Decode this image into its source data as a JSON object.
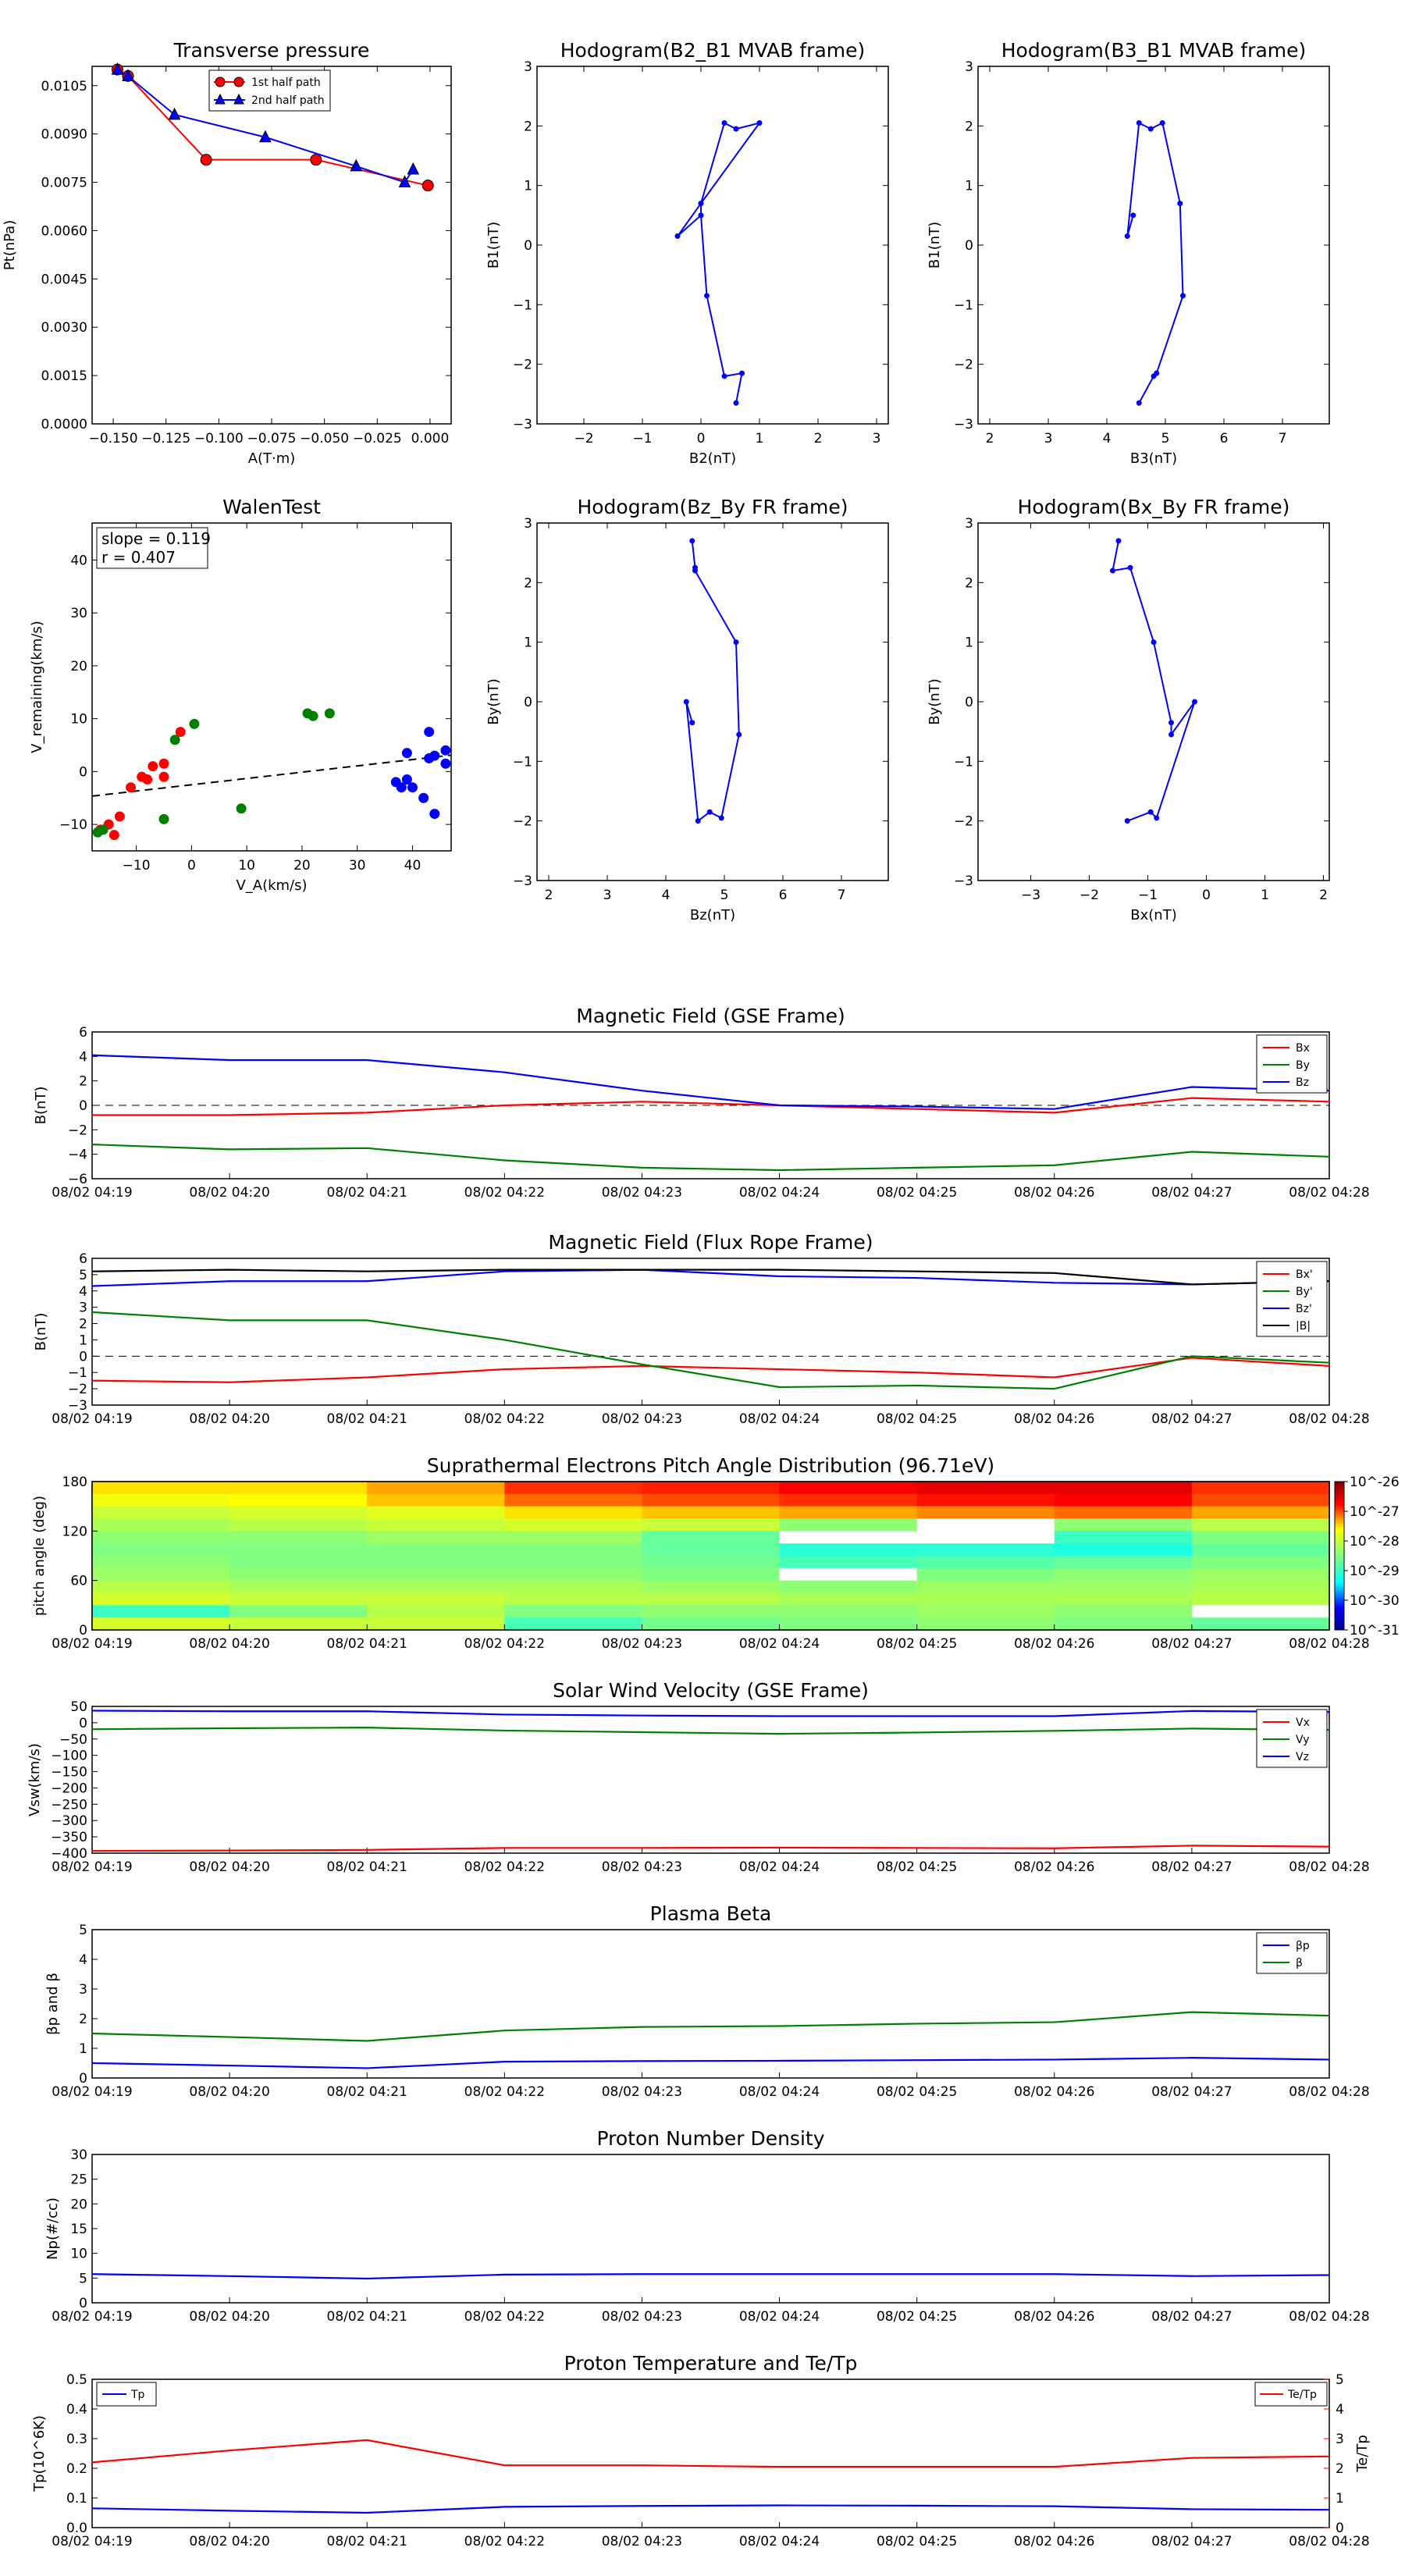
{
  "times": [
    "08/02 04:19",
    "08/02 04:20",
    "08/02 04:21",
    "08/02 04:22",
    "08/02 04:23",
    "08/02 04:24",
    "08/02 04:25",
    "08/02 04:26",
    "08/02 04:27",
    "08/02 04:28"
  ],
  "colors": {
    "red": "#ff0000",
    "green": "#008000",
    "blue": "#0000ff",
    "black": "#000000"
  },
  "chart_data": [
    {
      "id": "tp",
      "type": "line",
      "title": "Transverse pressure",
      "xlabel": "A(T·m)",
      "ylabel": "Pt(nPa)",
      "xlim": [
        -0.16,
        0.01
      ],
      "ylim": [
        0,
        0.0111
      ],
      "xticks": [
        -0.15,
        -0.125,
        -0.1,
        -0.075,
        -0.05,
        -0.025,
        0.0
      ],
      "xtick_labels": [
        "−0.150",
        "−0.125",
        "−0.100",
        "−0.075",
        "−0.050",
        "−0.025",
        "0.000"
      ],
      "yticks": [
        0.0,
        0.0015,
        0.003,
        0.0045,
        0.006,
        0.0075,
        0.009,
        0.0105
      ],
      "ytick_labels": [
        "0.0000",
        "0.0015",
        "0.0030",
        "0.0045",
        "0.0060",
        "0.0075",
        "0.0090",
        "0.0105"
      ],
      "legend": "top-center",
      "series": [
        {
          "name": "1st half path",
          "color": "#ff0000",
          "marker": "circle",
          "x": [
            -0.148,
            -0.143,
            -0.106,
            -0.054,
            -0.001
          ],
          "y": [
            0.011,
            0.0108,
            0.0082,
            0.0082,
            0.0074
          ]
        },
        {
          "name": "2nd half path",
          "color": "#0000ff",
          "marker": "triangle",
          "x": [
            -0.148,
            -0.143,
            -0.121,
            -0.078,
            -0.035,
            -0.012,
            -0.008
          ],
          "y": [
            0.011,
            0.0108,
            0.0096,
            0.0089,
            0.008,
            0.0075,
            0.0079
          ]
        }
      ]
    },
    {
      "id": "h1",
      "type": "line",
      "title": "Hodogram(B2_B1 MVAB frame)",
      "xlabel": "B2(nT)",
      "ylabel": "B1(nT)",
      "xlim": [
        -2.8,
        3.2
      ],
      "ylim": [
        -3,
        3
      ],
      "xticks": [
        -2,
        -1,
        0,
        1,
        2,
        3
      ],
      "yticks": [
        -3,
        -2,
        -1,
        0,
        1,
        2,
        3
      ],
      "xtick_labels": [
        "−2",
        "−1",
        "0",
        "1",
        "2",
        "3"
      ],
      "ytick_labels": [
        "−3",
        "−2",
        "−1",
        "0",
        "1",
        "2",
        "3"
      ],
      "series": [
        {
          "color": "#0000ff",
          "marker": "dot",
          "x": [
            0.6,
            0.7,
            0.4,
            0.1,
            0.0,
            -0.4,
            0.0,
            0.4,
            0.6,
            1.0,
            0.0,
            0.0
          ],
          "y": [
            -2.65,
            -2.15,
            -2.2,
            -0.85,
            0.5,
            0.15,
            0.7,
            2.05,
            1.95,
            2.05,
            0.7,
            0.5
          ]
        }
      ]
    },
    {
      "id": "h2",
      "type": "line",
      "title": "Hodogram(B3_B1 MVAB frame)",
      "xlabel": "B3(nT)",
      "ylabel": "B1(nT)",
      "xlim": [
        1.8,
        7.8
      ],
      "ylim": [
        -3,
        3
      ],
      "xticks": [
        2,
        3,
        4,
        5,
        6,
        7
      ],
      "yticks": [
        -3,
        -2,
        -1,
        0,
        1,
        2,
        3
      ],
      "xtick_labels": [
        "2",
        "3",
        "4",
        "5",
        "6",
        "7"
      ],
      "ytick_labels": [
        "−3",
        "−2",
        "−1",
        "0",
        "1",
        "2",
        "3"
      ],
      "series": [
        {
          "color": "#0000ff",
          "marker": "dot",
          "x": [
            4.55,
            4.8,
            4.85,
            5.3,
            5.25,
            4.95,
            4.75,
            4.55,
            4.35,
            4.45
          ],
          "y": [
            -2.65,
            -2.2,
            -2.15,
            -0.85,
            0.7,
            2.05,
            1.95,
            2.05,
            0.15,
            0.5
          ]
        }
      ]
    },
    {
      "id": "walen",
      "type": "scatter",
      "title": "WalenTest",
      "xlabel": "V_A(km/s)",
      "ylabel": "V_remaining(km/s)",
      "xlim": [
        -18,
        47
      ],
      "ylim": [
        -15,
        47
      ],
      "xticks": [
        -10,
        0,
        10,
        20,
        30,
        40
      ],
      "yticks": [
        -10,
        0,
        10,
        20,
        30,
        40
      ],
      "xtick_labels": [
        "−10",
        "0",
        "10",
        "20",
        "30",
        "40"
      ],
      "ytick_labels": [
        "−10",
        "0",
        "10",
        "20",
        "30",
        "40"
      ],
      "annotation": [
        "slope = 0.119",
        "r = 0.407"
      ],
      "fit": {
        "slope": 0.119,
        "intercept": -2.5,
        "color": "#000000",
        "style": "dashed"
      },
      "series": [
        {
          "color": "#ff0000",
          "x": [
            -16.5,
            -15,
            -14,
            -13,
            -11,
            -9,
            -8,
            -7,
            -5,
            -5,
            -2
          ],
          "y": [
            -11,
            -10,
            -12,
            -8.5,
            -3,
            -1,
            -1.5,
            1,
            1.5,
            -1,
            7.5
          ]
        },
        {
          "color": "#008000",
          "x": [
            -17,
            -16,
            -5,
            -3,
            0.5,
            9,
            21,
            22,
            25
          ],
          "y": [
            -11.5,
            -11,
            -9,
            6,
            9,
            -7,
            11,
            10.5,
            11
          ]
        },
        {
          "color": "#0000ff",
          "x": [
            37,
            38,
            39,
            39,
            40,
            42,
            43,
            43,
            44,
            44,
            46,
            46
          ],
          "y": [
            -2,
            -3,
            -1.5,
            3.5,
            -3,
            -5,
            2.5,
            7.5,
            -8,
            3,
            1.5,
            4
          ]
        }
      ]
    },
    {
      "id": "h3",
      "type": "line",
      "title": "Hodogram(Bz_By FR frame)",
      "xlabel": "Bz(nT)",
      "ylabel": "By(nT)",
      "xlim": [
        1.8,
        7.8
      ],
      "ylim": [
        -3,
        3
      ],
      "xticks": [
        2,
        3,
        4,
        5,
        6,
        7
      ],
      "yticks": [
        -3,
        -2,
        -1,
        0,
        1,
        2,
        3
      ],
      "xtick_labels": [
        "2",
        "3",
        "4",
        "5",
        "6",
        "7"
      ],
      "ytick_labels": [
        "−3",
        "−2",
        "−1",
        "0",
        "1",
        "2",
        "3"
      ],
      "series": [
        {
          "color": "#0000ff",
          "marker": "dot",
          "x": [
            4.45,
            4.5,
            4.5,
            5.2,
            5.25,
            4.95,
            4.75,
            4.55,
            4.35,
            4.45
          ],
          "y": [
            2.7,
            2.25,
            2.2,
            1.0,
            -0.55,
            -1.95,
            -1.85,
            -2.0,
            0.0,
            -0.35
          ]
        }
      ]
    },
    {
      "id": "h4",
      "type": "line",
      "title": "Hodogram(Bx_By FR frame)",
      "xlabel": "Bx(nT)",
      "ylabel": "By(nT)",
      "xlim": [
        -3.9,
        2.1
      ],
      "ylim": [
        -3,
        3
      ],
      "xticks": [
        -3,
        -2,
        -1,
        0,
        1,
        2
      ],
      "yticks": [
        -3,
        -2,
        -1,
        0,
        1,
        2,
        3
      ],
      "xtick_labels": [
        "−3",
        "−2",
        "−1",
        "0",
        "1",
        "2"
      ],
      "ytick_labels": [
        "−3",
        "−2",
        "−1",
        "0",
        "1",
        "2",
        "3"
      ],
      "series": [
        {
          "color": "#0000ff",
          "marker": "dot",
          "x": [
            -1.5,
            -1.6,
            -1.3,
            -0.9,
            -0.6,
            -0.6,
            -0.2,
            -0.85,
            -0.95,
            -1.35
          ],
          "y": [
            2.7,
            2.2,
            2.25,
            1.0,
            -0.35,
            -0.55,
            0.0,
            -1.95,
            -1.85,
            -2.0
          ]
        }
      ]
    },
    {
      "id": "mag",
      "type": "line",
      "title": "Magnetic Field (GSE Frame)",
      "ylabel": "B(nT)",
      "ylim": [
        -6,
        6
      ],
      "yticks": [
        -6,
        -4,
        -2,
        0,
        2,
        4,
        6
      ],
      "ytick_labels": [
        "−6",
        "−4",
        "−2",
        "0",
        "2",
        "4",
        "6"
      ],
      "zero_line": true,
      "legend": "top-right",
      "series": [
        {
          "name": "Bx",
          "color": "#ff0000",
          "values": [
            -0.8,
            -0.8,
            -0.6,
            0.0,
            0.3,
            0.0,
            -0.3,
            -0.6,
            0.6,
            0.3
          ]
        },
        {
          "name": "By",
          "color": "#008000",
          "values": [
            -3.2,
            -3.6,
            -3.5,
            -4.5,
            -5.1,
            -5.3,
            -5.1,
            -4.9,
            -3.8,
            -4.2
          ]
        },
        {
          "name": "Bz",
          "color": "#0000ff",
          "values": [
            4.1,
            3.7,
            3.7,
            2.7,
            1.2,
            0.0,
            -0.1,
            -0.3,
            1.5,
            1.2
          ]
        }
      ]
    },
    {
      "id": "frmag",
      "type": "line",
      "title": "Magnetic Field (Flux Rope Frame)",
      "ylabel": "B(nT)",
      "ylim": [
        -3,
        6
      ],
      "yticks": [
        -3,
        -2,
        -1,
        0,
        1,
        2,
        3,
        4,
        5,
        6
      ],
      "ytick_labels": [
        "−3",
        "−2",
        "−1",
        "0",
        "1",
        "2",
        "3",
        "4",
        "5",
        "6"
      ],
      "zero_line": true,
      "legend": "top-right",
      "series": [
        {
          "name": "Bx'",
          "color": "#ff0000",
          "values": [
            -1.5,
            -1.6,
            -1.3,
            -0.8,
            -0.6,
            -0.8,
            -1.0,
            -1.3,
            -0.1,
            -0.6
          ]
        },
        {
          "name": "By'",
          "color": "#008000",
          "values": [
            2.7,
            2.2,
            2.2,
            1.0,
            -0.5,
            -1.9,
            -1.8,
            -2.0,
            0.0,
            -0.4
          ]
        },
        {
          "name": "Bz'",
          "color": "#0000ff",
          "values": [
            4.3,
            4.6,
            4.6,
            5.2,
            5.3,
            4.9,
            4.8,
            4.5,
            4.4,
            4.6
          ]
        },
        {
          "name": "|B|",
          "color": "#000000",
          "values": [
            5.2,
            5.3,
            5.2,
            5.3,
            5.3,
            5.3,
            5.2,
            5.1,
            4.4,
            4.6
          ]
        }
      ]
    },
    {
      "id": "pad",
      "type": "heatmap",
      "title": "Suprathermal Electrons Pitch Angle Distribution (96.71eV)",
      "ylabel": "pitch angle (deg)",
      "ylim": [
        0,
        180
      ],
      "yticks": [
        0,
        60,
        120,
        180
      ],
      "ytick_labels": [
        "0",
        "60",
        "120",
        "180"
      ],
      "colorbar_labels": [
        "10^-26",
        "10^-27",
        "10^-28",
        "10^-29",
        "10^-30",
        "10^-31"
      ],
      "rows": [
        "172",
        "157",
        "142",
        "127",
        "112",
        "97",
        "82",
        "67",
        "52",
        "37",
        "22",
        "7"
      ],
      "matrix": [
        [
          0.7,
          0.7,
          0.74,
          0.82,
          0.83,
          0.86,
          0.88,
          0.88,
          0.82
        ],
        [
          0.66,
          0.68,
          0.72,
          0.78,
          0.8,
          0.82,
          0.84,
          0.85,
          0.8
        ],
        [
          0.6,
          0.62,
          0.64,
          0.7,
          0.72,
          0.74,
          0.76,
          0.78,
          0.74
        ],
        [
          0.56,
          0.58,
          0.6,
          0.62,
          0.6,
          0.52,
          0.5,
          0.52,
          0.58
        ],
        [
          0.52,
          0.52,
          0.54,
          0.54,
          0.46,
          0.4,
          0.42,
          0.4,
          0.5
        ],
        [
          0.5,
          0.5,
          0.5,
          0.5,
          0.46,
          0.38,
          0.38,
          0.36,
          0.46
        ],
        [
          0.52,
          0.5,
          0.5,
          0.5,
          0.48,
          0.42,
          0.44,
          0.46,
          0.5
        ],
        [
          0.54,
          0.52,
          0.52,
          0.52,
          0.5,
          0.48,
          0.5,
          0.52,
          0.54
        ],
        [
          0.58,
          0.56,
          0.56,
          0.56,
          0.54,
          0.52,
          0.54,
          0.54,
          0.56
        ],
        [
          0.62,
          0.6,
          0.6,
          0.58,
          0.58,
          0.56,
          0.56,
          0.56,
          0.58
        ],
        [
          0.4,
          0.5,
          0.58,
          0.5,
          0.52,
          0.52,
          0.54,
          0.52,
          0.56
        ],
        [
          0.62,
          0.6,
          0.6,
          0.42,
          0.48,
          0.5,
          0.52,
          0.5,
          0.46
        ]
      ],
      "blank": [
        [
          4,
          5
        ],
        [
          7,
          5
        ],
        [
          4,
          6
        ],
        [
          3,
          6
        ],
        [
          10,
          8
        ]
      ]
    },
    {
      "id": "sw",
      "type": "line",
      "title": "Solar Wind Velocity (GSE Frame)",
      "ylabel": "Vsw(km/s)",
      "ylim": [
        -400,
        50
      ],
      "yticks": [
        -400,
        -350,
        -300,
        -250,
        -200,
        -150,
        -100,
        -50,
        0,
        50
      ],
      "ytick_labels": [
        "−400",
        "−350",
        "−300",
        "−250",
        "−200",
        "−150",
        "−100",
        "−50",
        "0",
        "50"
      ],
      "legend": "top-right",
      "series": [
        {
          "name": "Vx",
          "color": "#ff0000",
          "values": [
            -393,
            -392,
            -390,
            -384,
            -384,
            -383,
            -384,
            -385,
            -377,
            -380
          ]
        },
        {
          "name": "Vy",
          "color": "#008000",
          "values": [
            -20,
            -17,
            -15,
            -24,
            -29,
            -34,
            -30,
            -25,
            -18,
            -22
          ]
        },
        {
          "name": "Vz",
          "color": "#0000ff",
          "values": [
            37,
            35,
            35,
            25,
            22,
            20,
            20,
            20,
            36,
            33
          ]
        }
      ]
    },
    {
      "id": "beta",
      "type": "line",
      "title": "Plasma Beta",
      "ylabel": "βp and β",
      "ylim": [
        0,
        5
      ],
      "yticks": [
        0,
        1,
        2,
        3,
        4,
        5
      ],
      "ytick_labels": [
        "0",
        "1",
        "2",
        "3",
        "4",
        "5"
      ],
      "legend": "top-right",
      "series": [
        {
          "name": "βp",
          "color": "#0000ff",
          "values": [
            0.5,
            0.42,
            0.33,
            0.55,
            0.57,
            0.58,
            0.6,
            0.62,
            0.68,
            0.62
          ]
        },
        {
          "name": "β",
          "color": "#008000",
          "values": [
            1.5,
            1.38,
            1.25,
            1.6,
            1.72,
            1.75,
            1.83,
            1.88,
            2.22,
            2.1
          ]
        }
      ]
    },
    {
      "id": "np",
      "type": "line",
      "title": "Proton Number Density",
      "ylabel": "Np(#/cc)",
      "ylim": [
        0,
        30
      ],
      "yticks": [
        0,
        5,
        10,
        15,
        20,
        25,
        30
      ],
      "ytick_labels": [
        "0",
        "5",
        "10",
        "15",
        "20",
        "25",
        "30"
      ],
      "series": [
        {
          "name": "Np",
          "color": "#0000ff",
          "values": [
            5.8,
            5.4,
            4.9,
            5.7,
            5.8,
            5.8,
            5.8,
            5.8,
            5.4,
            5.6
          ]
        }
      ]
    },
    {
      "id": "tp2",
      "type": "line",
      "title": "Proton Temperature and Te/Tp",
      "ylabel": "Tp(10^6K)",
      "ylabel_right": "Te/Tp",
      "ylim": [
        0,
        0.5
      ],
      "yticks": [
        0,
        0.1,
        0.2,
        0.3,
        0.4,
        0.5
      ],
      "ytick_labels": [
        "0.0",
        "0.1",
        "0.2",
        "0.3",
        "0.4",
        "0.5"
      ],
      "ylim_right": [
        0,
        5
      ],
      "yticks_right": [
        0,
        1,
        2,
        3,
        4,
        5
      ],
      "ytick_labels_right": [
        "0",
        "1",
        "2",
        "3",
        "4",
        "5"
      ],
      "series": [
        {
          "name": "Tp",
          "color": "#0000ff",
          "axis": "left",
          "values": [
            0.065,
            0.057,
            0.05,
            0.07,
            0.073,
            0.075,
            0.074,
            0.072,
            0.062,
            0.06
          ]
        },
        {
          "name": "Te/Tp",
          "color": "#ff0000",
          "axis": "right",
          "values": [
            2.2,
            2.6,
            2.95,
            2.1,
            2.1,
            2.05,
            2.05,
            2.05,
            2.35,
            2.4
          ]
        }
      ]
    }
  ]
}
